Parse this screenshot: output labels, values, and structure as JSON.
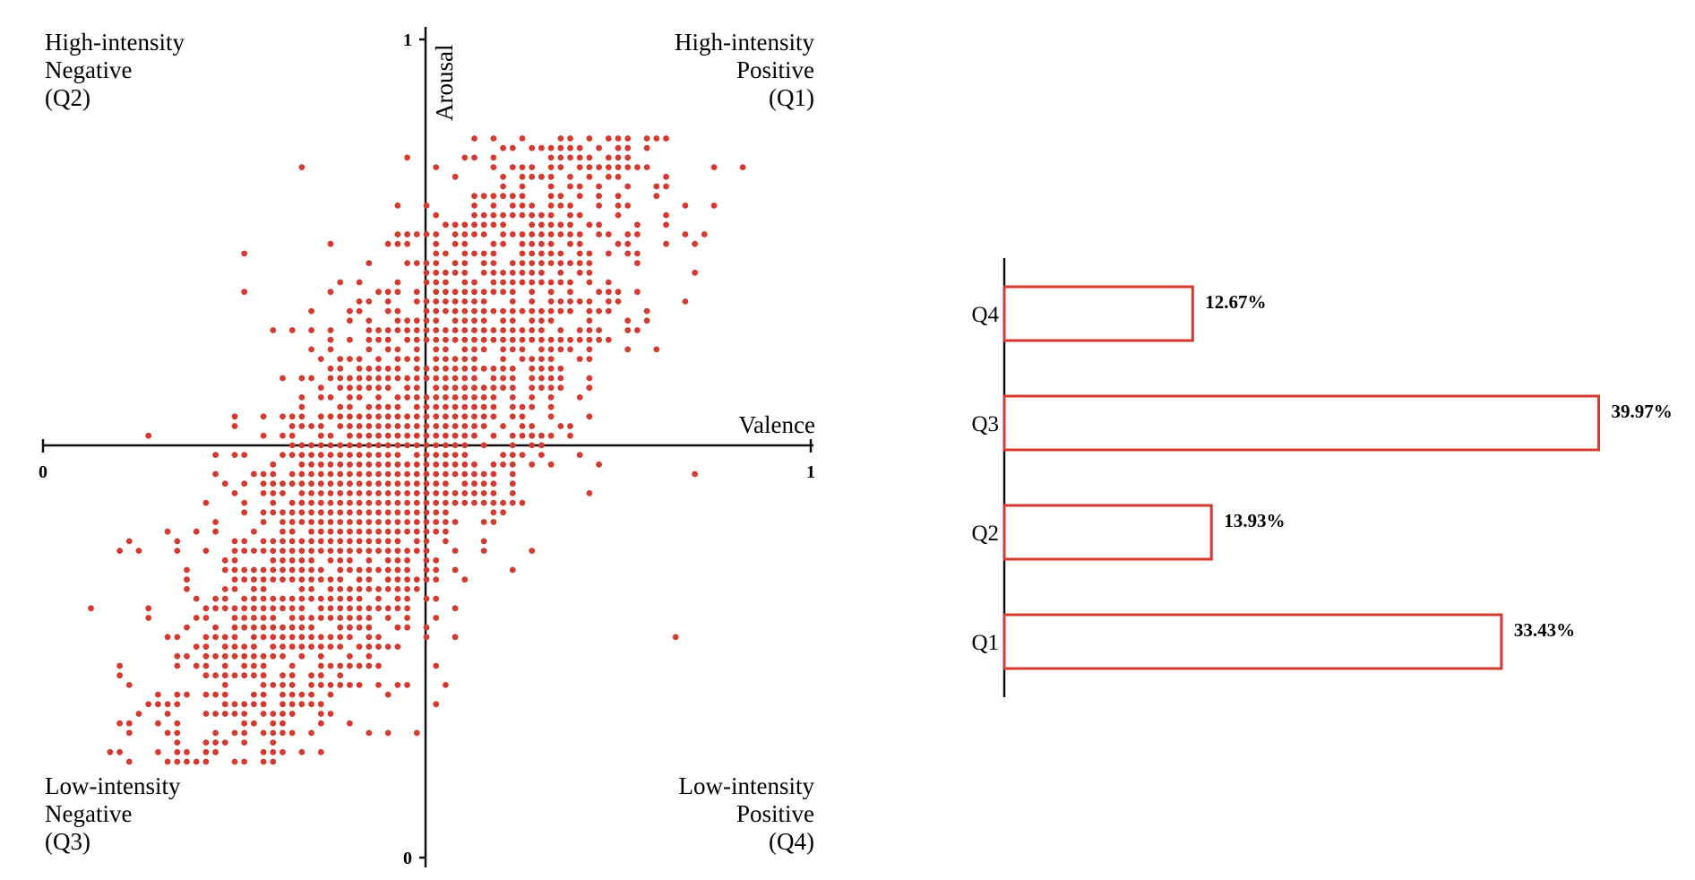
{
  "chart_data": [
    {
      "type": "scatter",
      "xlabel": "Valence",
      "ylabel": "Arousal",
      "xlim": [
        0,
        1
      ],
      "ylim": [
        0,
        1
      ],
      "x_ticks": [
        "0",
        "1"
      ],
      "y_ticks": [
        "0",
        "1"
      ],
      "point_color": "#d43a2f",
      "grid": false,
      "quadrant_labels": {
        "Q2": [
          "High-intensity",
          "Negative",
          "(Q2)"
        ],
        "Q1": [
          "High-intensity",
          "Positive",
          "(Q1)"
        ],
        "Q3": [
          "Low-intensity",
          "Negative",
          "(Q3)"
        ],
        "Q4": [
          "Low-intensity",
          "Positive",
          "(Q4)"
        ]
      }
    },
    {
      "type": "bar",
      "orientation": "horizontal",
      "categories": [
        "Q4",
        "Q3",
        "Q2",
        "Q1"
      ],
      "values": [
        12.67,
        39.97,
        13.93,
        33.43
      ],
      "value_labels": [
        "12.67%",
        "39.97%",
        "13.93%",
        "33.43%"
      ],
      "bar_outline_color": "#d43a2f",
      "bar_fill_color": "#ffffff",
      "xlim": [
        0,
        40
      ]
    }
  ]
}
